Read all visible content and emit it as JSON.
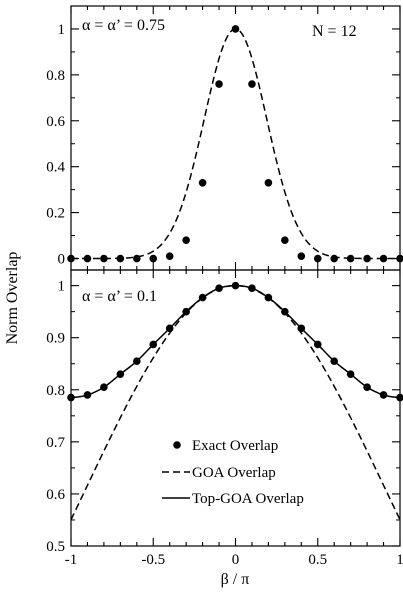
{
  "chart_data": [
    {
      "type": "line",
      "panel": "top",
      "annotation": "α = α’ = 0.75",
      "corner_label": "N = 12",
      "ylabel": "Norm Overlap",
      "xlim": [
        -1,
        1
      ],
      "ylim": [
        -0.05,
        1.1
      ],
      "yticks": [
        0,
        0.2,
        0.4,
        0.6,
        0.8,
        1
      ],
      "ytick_labels": [
        "0",
        "0.2",
        "0.4",
        "0.6",
        "0.8",
        "1"
      ],
      "series": [
        {
          "name": "Exact Overlap",
          "style": "points",
          "x": [
            -1.0,
            -0.9,
            -0.8,
            -0.7,
            -0.6,
            -0.5,
            -0.4,
            -0.3,
            -0.2,
            -0.1,
            0.0,
            0.1,
            0.2,
            0.3,
            0.4,
            0.5,
            0.6,
            0.7,
            0.8,
            0.9,
            1.0
          ],
          "y": [
            0,
            0,
            0,
            0,
            0,
            0,
            0.01,
            0.08,
            0.33,
            0.76,
            1.0,
            0.76,
            0.33,
            0.08,
            0.01,
            0,
            0,
            0,
            0,
            0,
            0
          ]
        },
        {
          "name": "GOA Overlap",
          "style": "dashed",
          "function": "exp(-13.78*x^2)"
        }
      ]
    },
    {
      "type": "line",
      "panel": "bottom",
      "annotation": "α = α’ = 0.1",
      "xlabel": "β / π",
      "xlim": [
        -1,
        1
      ],
      "ylim": [
        0.5,
        1.03
      ],
      "xticks": [
        -1,
        -0.5,
        0,
        0.5,
        1
      ],
      "xtick_labels": [
        "-1",
        "-0.5",
        "0",
        "0.5",
        "1"
      ],
      "yticks": [
        0.5,
        0.6,
        0.7,
        0.8,
        0.9,
        1
      ],
      "ytick_labels": [
        "0.5",
        "0.6",
        "0.7",
        "0.8",
        "0.9",
        "1"
      ],
      "legend_position": "bottom-right",
      "series": [
        {
          "name": "Exact Overlap",
          "style": "points",
          "x": [
            -1.0,
            -0.9,
            -0.8,
            -0.7,
            -0.6,
            -0.5,
            -0.4,
            -0.3,
            -0.2,
            -0.1,
            0.0,
            0.1,
            0.2,
            0.3,
            0.4,
            0.5,
            0.6,
            0.7,
            0.8,
            0.9,
            1.0
          ],
          "y": [
            0.785,
            0.79,
            0.805,
            0.83,
            0.855,
            0.887,
            0.918,
            0.95,
            0.977,
            0.995,
            1.0,
            0.995,
            0.977,
            0.95,
            0.918,
            0.887,
            0.855,
            0.83,
            0.805,
            0.79,
            0.785
          ]
        },
        {
          "name": "GOA Overlap",
          "style": "dashed",
          "function": "exp(-0.597*x^2)"
        },
        {
          "name": "Top-GOA Overlap",
          "style": "solid",
          "function": "exact-curve"
        }
      ]
    }
  ]
}
